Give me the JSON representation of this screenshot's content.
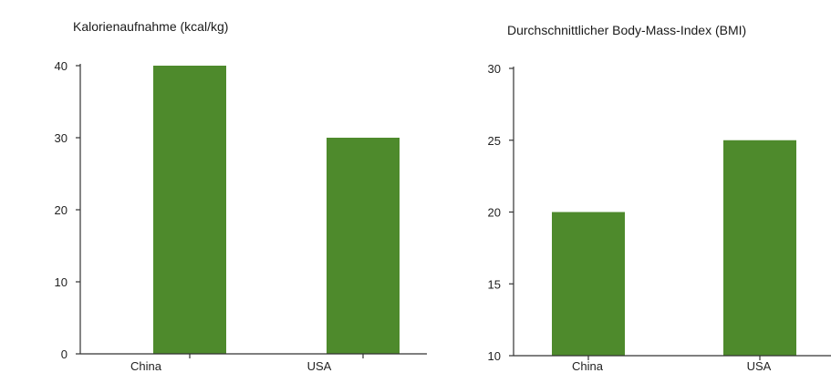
{
  "colors": {
    "bar": "#4e8a2c",
    "axis": "#333333"
  },
  "chart_data": [
    {
      "type": "bar",
      "title": "Kalorienaufnahme (kcal/kg)",
      "categories": [
        "China",
        "USA"
      ],
      "values": [
        40,
        30
      ],
      "ylim": [
        0,
        40
      ],
      "yticks": [
        0,
        10,
        20,
        30,
        40
      ],
      "ytick_labels": [
        "0",
        "10",
        "20",
        "30",
        "40"
      ],
      "grid": false
    },
    {
      "type": "bar",
      "title": "Durchschnittlicher Body-Mass-Index (BMI)",
      "categories": [
        "China",
        "USA"
      ],
      "values": [
        20,
        25
      ],
      "ylim": [
        10,
        30
      ],
      "yticks": [
        10,
        15,
        20,
        25,
        30
      ],
      "ytick_labels": [
        "10",
        "15",
        "20",
        "25",
        "30"
      ],
      "grid": false
    }
  ]
}
